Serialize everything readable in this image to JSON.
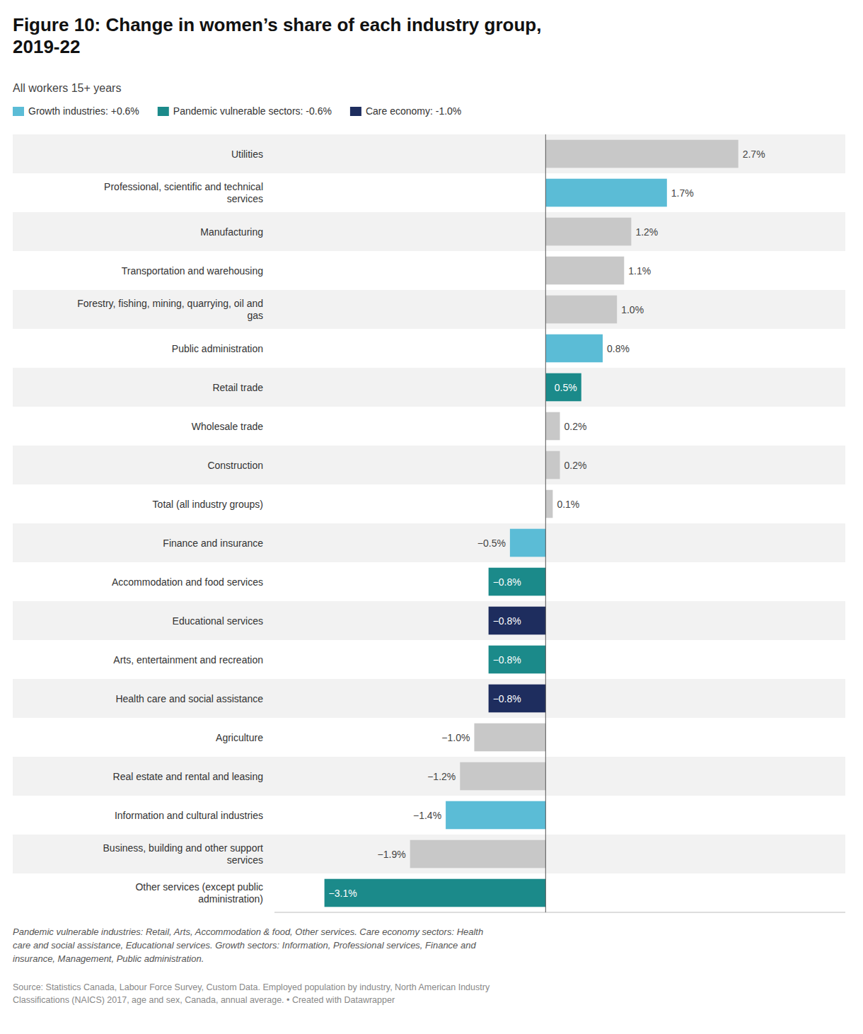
{
  "chart_data": {
    "type": "bar",
    "orientation": "horizontal",
    "title": "Figure 10: Change in women’s share of each industry group,\n2019-22",
    "subtitle": "All workers 15+ years",
    "categories": [
      "Utilities",
      "Professional, scientific and technical\nservices",
      "Manufacturing",
      "Transportation and warehousing",
      "Forestry, fishing, mining, quarrying, oil and\ngas",
      "Public administration",
      "Retail trade",
      "Wholesale trade",
      "Construction",
      "Total (all industry groups)",
      "Finance and insurance",
      "Accommodation and food services",
      "Educational services",
      "Arts, entertainment and recreation",
      "Health care and social assistance",
      "Agriculture",
      "Real estate and rental and leasing",
      "Information and cultural industries",
      "Business, building and other support\nservices",
      "Other services (except public\nadministration)"
    ],
    "values": [
      2.7,
      1.7,
      1.2,
      1.1,
      1.0,
      0.8,
      0.5,
      0.2,
      0.2,
      0.1,
      -0.5,
      -0.8,
      -0.8,
      -0.8,
      -0.8,
      -1.0,
      -1.2,
      -1.4,
      -1.9,
      -3.1
    ],
    "value_labels": [
      "2.7%",
      "1.7%",
      "1.2%",
      "1.1%",
      "1.0%",
      "0.8%",
      "0.5%",
      "0.2%",
      "0.2%",
      "0.1%",
      "−0.5%",
      "−0.8%",
      "−0.8%",
      "−0.8%",
      "−0.8%",
      "−1.0%",
      "−1.2%",
      "−1.4%",
      "−1.9%",
      "−3.1%"
    ],
    "colors": [
      "#c8c8c8",
      "#5bbcd6",
      "#c8c8c8",
      "#c8c8c8",
      "#c8c8c8",
      "#5bbcd6",
      "#1b8a8a",
      "#c8c8c8",
      "#c8c8c8",
      "#c8c8c8",
      "#5bbcd6",
      "#1b8a8a",
      "#1e2d5e",
      "#1b8a8a",
      "#1e2d5e",
      "#c8c8c8",
      "#c8c8c8",
      "#5bbcd6",
      "#c8c8c8",
      "#1b8a8a"
    ],
    "data_labels": true,
    "tick_labels": "y",
    "grid": false,
    "legend": "top",
    "legend_entries": [
      {
        "label": "Growth industries: +0.6%",
        "color": "#5bbcd6"
      },
      {
        "label": "Pandemic vulnerable sectors: -0.6%",
        "color": "#1b8a8a"
      },
      {
        "label": "Care economy: -1.0%",
        "color": "#1e2d5e"
      }
    ],
    "xlim": [
      -3.8,
      4.2
    ],
    "footnote": "Pandemic vulnerable industries: Retail, Arts, Accommodation & food, Other services. Care economy sectors: Health\ncare and social assistance, Educational services. Growth sectors: Information, Professional services, Finance and\ninsurance, Management, Public administration.",
    "source": "Source: Statistics Canada, Labour Force Survey, Custom Data. Employed population by industry, North American Industry\nClassifications (NAICS) 2017, age and sex, Canada, annual average. • Created with Datawrapper"
  }
}
